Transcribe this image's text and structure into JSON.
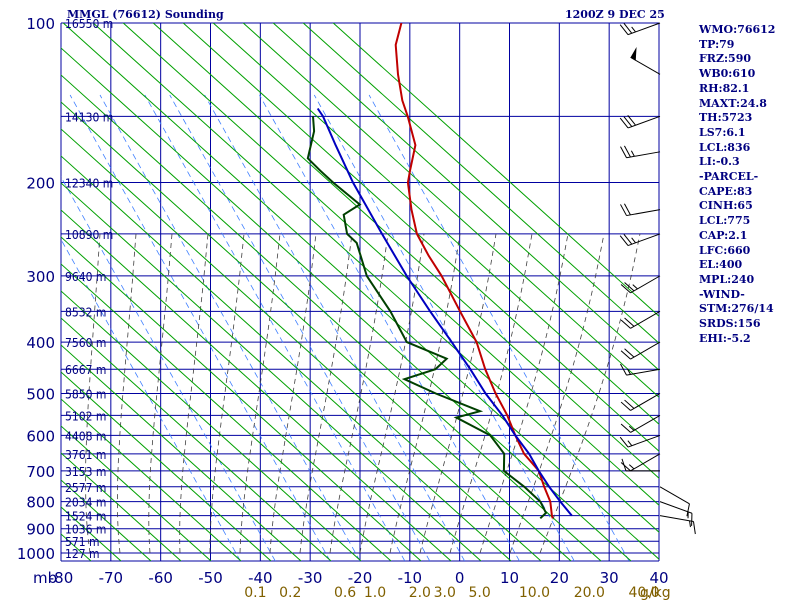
{
  "header": {
    "title": "MMGL (76612) Sounding",
    "datetime": "1200Z  9 DEC 25"
  },
  "indices": [
    "WMO:76612",
    "TP:79",
    "FRZ:590",
    "WB0:610",
    "RH:82.1",
    "MAXT:24.8",
    "TH:5723",
    "LS7:6.1",
    "LCL:836",
    "LI:-0.3",
    "-PARCEL-",
    "CAPE:83",
    "CINH:65",
    "LCL:775",
    "CAP:2.1",
    "LFC:660",
    "EL:400",
    "MPL:240",
    "-WIND-",
    "STM:276/14",
    "SRDS:156",
    "EHI:-5.2"
  ],
  "colors": {
    "background": "#ffffff",
    "isobar": "#0000a0",
    "isotherm": "#0000a0",
    "dry_adiabat": "#00a000",
    "moist_adiabat": "#404040",
    "mixing_ratio": "#4080ff",
    "temperature": "#c00000",
    "dewpoint": "#004000",
    "parcel": "#0000c0",
    "text": "#000080",
    "mixing_label": "#806000"
  },
  "chart_data": {
    "type": "line",
    "title": "MMGL (76612) Sounding",
    "skew_t": true,
    "y_scale": "log-pressure",
    "pressure_ticks": [
      {
        "label": "100",
        "value": 100
      },
      {
        "label": "200",
        "value": 200
      },
      {
        "label": "300",
        "value": 300
      },
      {
        "label": "400",
        "value": 400
      },
      {
        "label": "500",
        "value": 500
      },
      {
        "label": "600",
        "value": 600
      },
      {
        "label": "700",
        "value": 700
      },
      {
        "label": "800",
        "value": 800
      },
      {
        "label": "900",
        "value": 900
      },
      {
        "label": "1000",
        "value": 1000
      }
    ],
    "temperature_ticks": [
      "-80",
      "-70",
      "-60",
      "-50",
      "-40",
      "-30",
      "-20",
      "-10",
      "0",
      "10",
      "20",
      "30",
      "40"
    ],
    "xlabel_left": "mb",
    "ylim": [
      100,
      1000
    ],
    "xlim": [
      -80,
      40
    ],
    "height_labels": [
      {
        "label": "16550 m",
        "p": 100
      },
      {
        "label": "14130 m",
        "p": 150
      },
      {
        "label": "12340 m",
        "p": 200
      },
      {
        "label": "10890 m",
        "p": 250
      },
      {
        "label": "9640 m",
        "p": 300
      },
      {
        "label": "8532 m",
        "p": 350
      },
      {
        "label": "7560 m",
        "p": 400
      },
      {
        "label": "6667 m",
        "p": 450
      },
      {
        "label": "5850 m",
        "p": 500
      },
      {
        "label": "5102 m",
        "p": 550
      },
      {
        "label": "4408 m",
        "p": 600
      },
      {
        "label": "3761 m",
        "p": 650
      },
      {
        "label": "3153 m",
        "p": 700
      },
      {
        "label": "2577 m",
        "p": 750
      },
      {
        "label": "2034 m",
        "p": 800
      },
      {
        "label": "1524 m",
        "p": 850
      },
      {
        "label": "1036 m",
        "p": 900
      },
      {
        "label": "571 m",
        "p": 950
      },
      {
        "label": "127 m",
        "p": 1000
      }
    ],
    "mixing_ratio_labels": [
      {
        "label": "0.1",
        "t": -44
      },
      {
        "label": "0.2",
        "t": -37
      },
      {
        "label": "0.6",
        "t": -26
      },
      {
        "label": "1.0",
        "t": -20
      },
      {
        "label": "2.0",
        "t": -11
      },
      {
        "label": "3.0",
        "t": -6
      },
      {
        "label": "5.0",
        "t": 1
      },
      {
        "label": "10.0",
        "t": 12
      },
      {
        "label": "20.0",
        "t": 23
      },
      {
        "label": "40.0",
        "t": 34
      }
    ],
    "mixing_ratio_unit": "g/kg",
    "series": [
      {
        "key": "temperature",
        "points": [
          [
            100,
            -75.5
          ],
          [
            110,
            -74
          ],
          [
            125,
            -70
          ],
          [
            140,
            -66
          ],
          [
            150,
            -63
          ],
          [
            170,
            -58
          ],
          [
            190,
            -56
          ],
          [
            200,
            -55
          ],
          [
            225,
            -51
          ],
          [
            250,
            -47
          ],
          [
            275,
            -42
          ],
          [
            300,
            -37
          ],
          [
            350,
            -29
          ],
          [
            400,
            -22
          ],
          [
            450,
            -17
          ],
          [
            500,
            -12
          ],
          [
            550,
            -7
          ],
          [
            600,
            -3
          ],
          [
            650,
            1
          ],
          [
            700,
            6
          ],
          [
            750,
            9
          ],
          [
            800,
            12
          ],
          [
            850,
            14
          ],
          [
            860,
            14.5
          ]
        ]
      },
      {
        "key": "dewpoint",
        "points": [
          [
            150,
            -82
          ],
          [
            160,
            -80
          ],
          [
            180,
            -78
          ],
          [
            190,
            -74
          ],
          [
            200,
            -70
          ],
          [
            220,
            -62
          ],
          [
            230,
            -64
          ],
          [
            250,
            -61
          ],
          [
            260,
            -58
          ],
          [
            300,
            -52
          ],
          [
            350,
            -43
          ],
          [
            400,
            -36
          ],
          [
            430,
            -26
          ],
          [
            450,
            -27
          ],
          [
            470,
            -32
          ],
          [
            500,
            -24
          ],
          [
            540,
            -13
          ],
          [
            555,
            -17
          ],
          [
            600,
            -8
          ],
          [
            650,
            -3
          ],
          [
            700,
            -1
          ],
          [
            750,
            5
          ],
          [
            800,
            10
          ],
          [
            840,
            12.5
          ],
          [
            860,
            12
          ]
        ]
      },
      {
        "key": "parcel",
        "points": [
          [
            850,
            18
          ],
          [
            800,
            14
          ],
          [
            750,
            10
          ],
          [
            700,
            6
          ],
          [
            650,
            2
          ],
          [
            600,
            -3
          ],
          [
            550,
            -8
          ],
          [
            500,
            -14
          ],
          [
            450,
            -20
          ],
          [
            400,
            -27
          ],
          [
            350,
            -35
          ],
          [
            300,
            -44
          ],
          [
            250,
            -54
          ],
          [
            200,
            -66
          ],
          [
            170,
            -74
          ],
          [
            150,
            -80
          ],
          [
            145,
            -82
          ]
        ]
      }
    ],
    "wind_barbs": [
      {
        "p": 100,
        "dir": 250,
        "spd": 25
      },
      {
        "p": 125,
        "dir": 300,
        "spd": 50
      },
      {
        "p": 150,
        "dir": 250,
        "spd": 30
      },
      {
        "p": 175,
        "dir": 260,
        "spd": 25
      },
      {
        "p": 225,
        "dir": 260,
        "spd": 20
      },
      {
        "p": 250,
        "dir": 250,
        "spd": 25
      },
      {
        "p": 300,
        "dir": 240,
        "spd": 25
      },
      {
        "p": 350,
        "dir": 240,
        "spd": 20
      },
      {
        "p": 400,
        "dir": 240,
        "spd": 20
      },
      {
        "p": 450,
        "dir": 260,
        "spd": 15
      },
      {
        "p": 500,
        "dir": 240,
        "spd": 20
      },
      {
        "p": 550,
        "dir": 240,
        "spd": 15
      },
      {
        "p": 600,
        "dir": 250,
        "spd": 15
      },
      {
        "p": 650,
        "dir": 240,
        "spd": 15
      },
      {
        "p": 700,
        "dir": 270,
        "spd": 10
      },
      {
        "p": 750,
        "dir": 120,
        "spd": 10
      },
      {
        "p": 800,
        "dir": 110,
        "spd": 15
      },
      {
        "p": 850,
        "dir": 100,
        "spd": 15
      }
    ]
  }
}
